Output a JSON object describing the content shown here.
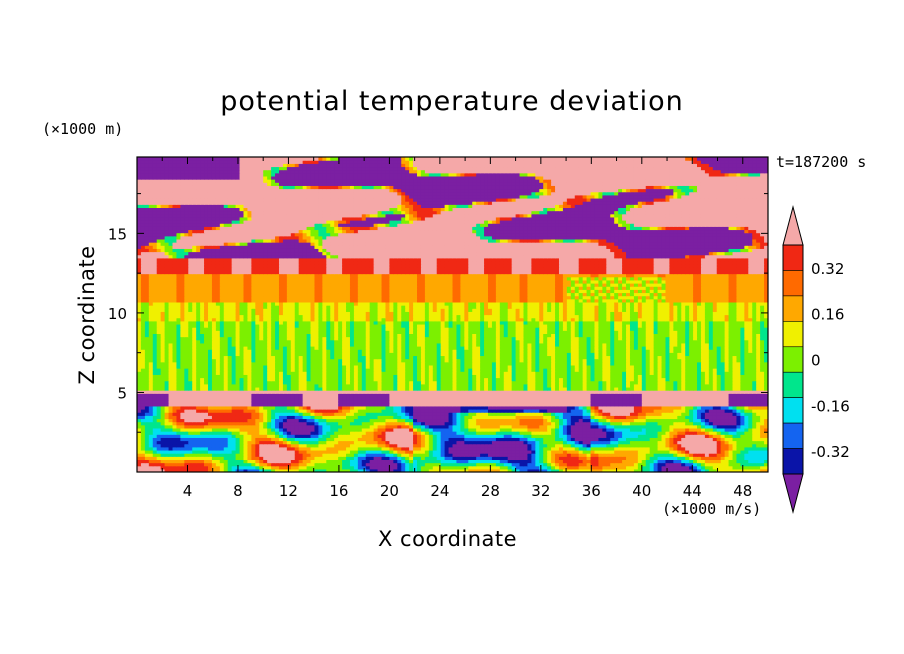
{
  "chart_data": {
    "type": "heatmap",
    "title": "potential temperature deviation",
    "xlabel": "X coordinate",
    "ylabel": "Z coordinate",
    "x_unit": "(×1000 m/s)",
    "y_unit": "(×1000 m)",
    "time_label": "t=187200 s",
    "xlim": [
      0,
      50
    ],
    "ylim": [
      0,
      19.8
    ],
    "x_ticks": [
      4,
      8,
      12,
      16,
      20,
      24,
      28,
      32,
      36,
      40,
      44,
      48
    ],
    "y_ticks": [
      5,
      10,
      15
    ],
    "colorbar": {
      "levels": [
        -0.4,
        -0.32,
        -0.24,
        -0.16,
        -0.08,
        0,
        0.08,
        0.16,
        0.24,
        0.32,
        0.4
      ],
      "tick_labels": [
        "-0.32",
        "-0.16",
        "0",
        "0.16",
        "0.32"
      ],
      "tick_values": [
        -0.32,
        -0.16,
        0,
        0.16,
        0.32
      ],
      "colors": [
        "#7B1FA2",
        "#0A14A8",
        "#1464F0",
        "#00E0F0",
        "#00E68C",
        "#7CF000",
        "#F0F000",
        "#FFA800",
        "#FF6A00",
        "#F02814",
        "#F5A8A8"
      ],
      "extend": "both"
    },
    "bands": [
      {
        "z_min": 0,
        "z_max": 4.2,
        "description_level": "mixed",
        "value": 0.0
      },
      {
        "z_min": 4.2,
        "z_max": 5.2,
        "value": 0.4
      },
      {
        "z_min": 5.2,
        "z_max": 10.7,
        "value": 0.0
      },
      {
        "z_min": 10.7,
        "z_max": 12.5,
        "value": 0.16
      },
      {
        "z_min": 12.5,
        "z_max": 13.5,
        "value": 0.32
      },
      {
        "z_min": 13.5,
        "z_max": 19.8,
        "value": 0.4
      }
    ]
  }
}
